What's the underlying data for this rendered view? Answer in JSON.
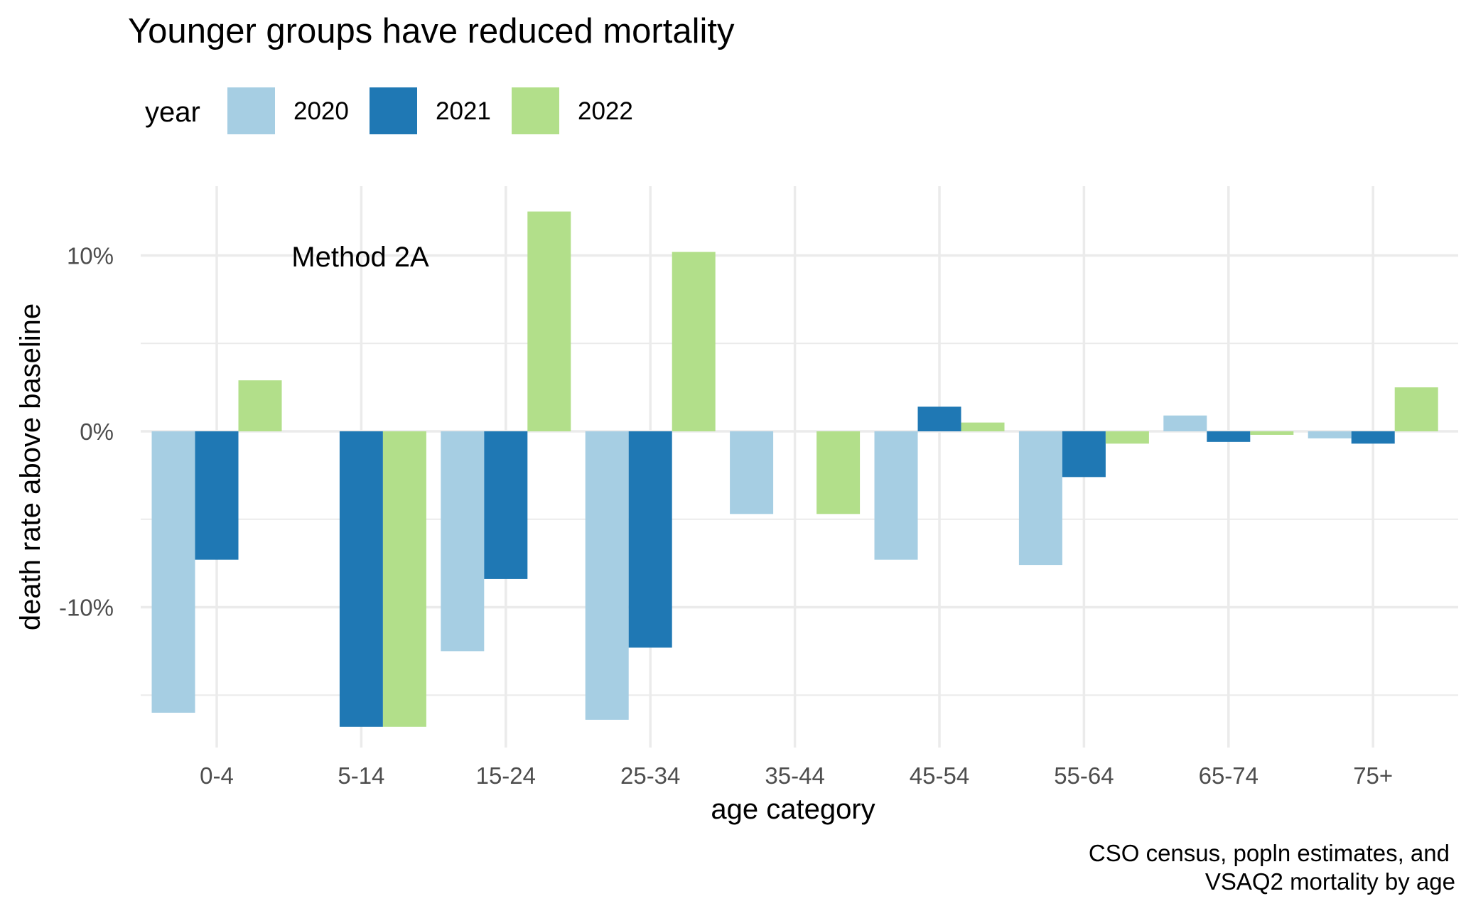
{
  "chart_data": {
    "type": "bar",
    "title": "Younger groups have reduced mortality",
    "xlabel": "age category",
    "ylabel": "death rate above baseline",
    "legend_title": "year",
    "legend_position": "top-left",
    "annotation": "Method 2A",
    "caption_lines": [
      "CSO census, popln estimates, and",
      "VSAQ2 mortality by age"
    ],
    "categories": [
      "0-4",
      "5-14",
      "15-24",
      "25-34",
      "35-44",
      "45-54",
      "55-64",
      "65-74",
      "75+"
    ],
    "y_ticks": [
      {
        "value": 10,
        "label": "10%"
      },
      {
        "value": 0,
        "label": "0%"
      },
      {
        "value": -10,
        "label": "-10%"
      }
    ],
    "ylim": [
      -17.5,
      14
    ],
    "grid": true,
    "series": [
      {
        "name": "2020",
        "color": "#a6cee3",
        "values": [
          -16.0,
          null,
          -12.5,
          -16.4,
          -4.7,
          -7.3,
          -7.6,
          0.9,
          -0.4
        ]
      },
      {
        "name": "2021",
        "color": "#1f78b4",
        "values": [
          -7.3,
          -16.8,
          -8.4,
          -12.3,
          null,
          1.4,
          -2.6,
          -0.6,
          -0.7
        ]
      },
      {
        "name": "2022",
        "color": "#b2df8a",
        "values": [
          2.9,
          -16.8,
          12.5,
          10.2,
          -4.7,
          0.5,
          -0.7,
          -0.2,
          2.5
        ]
      }
    ]
  }
}
